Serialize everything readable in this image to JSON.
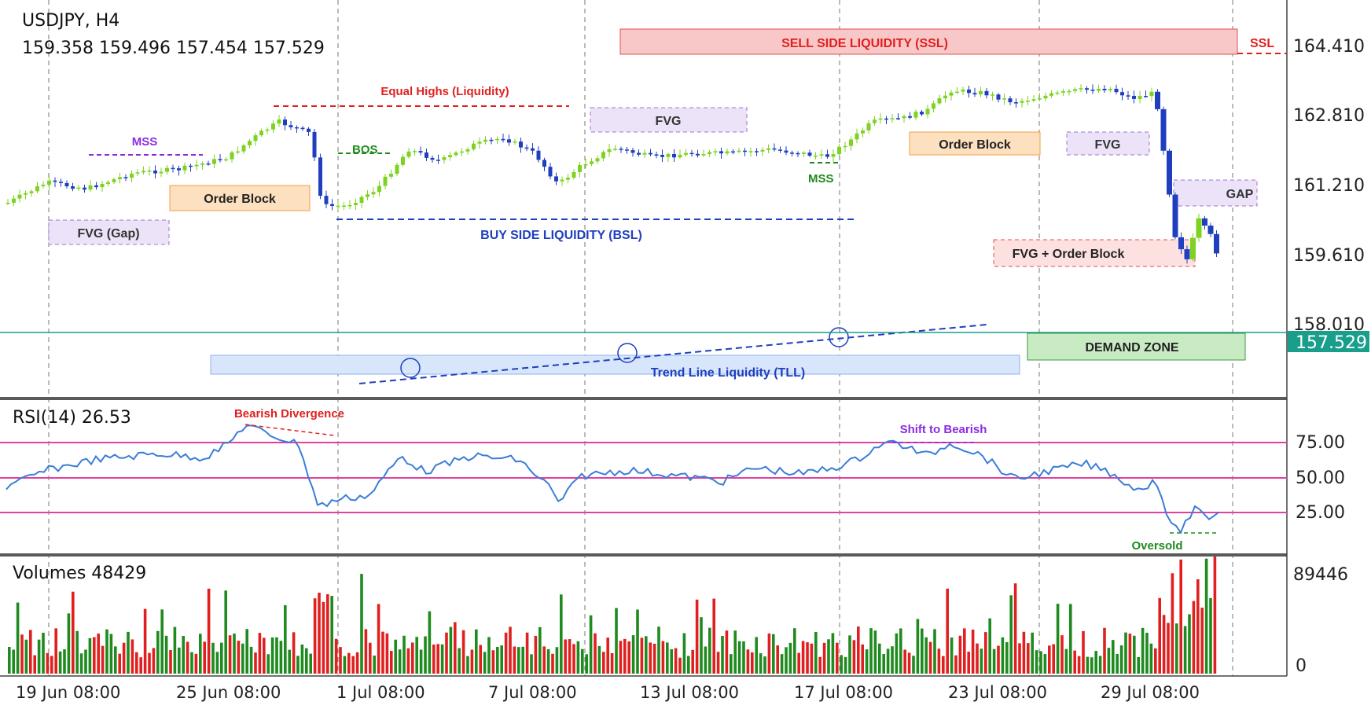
{
  "header": {
    "symbol_line": "USDJPY, H4",
    "ohlc_line": "159.358 159.496 157.454 157.529"
  },
  "price_axis": {
    "ticks": [
      "164.410",
      "162.810",
      "161.210",
      "159.610",
      "158.010"
    ],
    "last_price": "157.529"
  },
  "rsi": {
    "title": "RSI(14) 26.53",
    "levels": [
      "75.00",
      "50.00",
      "25.00"
    ],
    "annotations": {
      "divergence": "Bearish Divergence",
      "shift": "Shift to Bearish",
      "oversold": "Oversold"
    }
  },
  "volume": {
    "title": "Volumes 48429",
    "max_label": "89446",
    "min_label": "0"
  },
  "x_axis": {
    "labels": [
      "19 Jun 08:00",
      "25 Jun 08:00",
      "1 Jul 08:00",
      "7 Jul 08:00",
      "13 Jul 08:00",
      "17 Jul 08:00",
      "23 Jul 08:00",
      "29 Jul 08:00"
    ]
  },
  "zones": {
    "ssl": "SELL SIDE LIQUIDITY (SSL)",
    "ssl_tag": "SSL",
    "equal_highs": "Equal Highs (Liquidity)",
    "mss_left": "MSS",
    "mss_right": "MSS",
    "bos": "BOS",
    "fvg_gap": "FVG (Gap)",
    "order_block_left": "Order Block",
    "fvg_mid": "FVG",
    "order_block_right": "Order Block",
    "fvg_right": "FVG",
    "gap": "GAP",
    "fvg_order_block": "FVG + Order Block",
    "bsl": "BUY SIDE LIQUIDITY (BSL)",
    "demand": "DEMAND ZONE",
    "tll": "Trend Line Liquidity (TLL)"
  },
  "colors": {
    "bull": "#7ed321",
    "bear": "#1f3fbf",
    "rsi_line": "#3b7dd8",
    "rsi_levels": "#e0409e",
    "vol_up": "#1f8a1f",
    "vol_down": "#e02020",
    "last_price_bg": "#1a9e8c"
  },
  "chart_data": {
    "type": "candlestick",
    "symbol": "USDJPY",
    "timeframe": "H4",
    "price_ticks": [
      164.41,
      162.81,
      161.21,
      159.61,
      158.01
    ],
    "last_close": 157.529,
    "rsi_value": 26.53,
    "rsi_levels": [
      75,
      50,
      25
    ],
    "volume_last": 48429,
    "volume_max": 89446
  }
}
